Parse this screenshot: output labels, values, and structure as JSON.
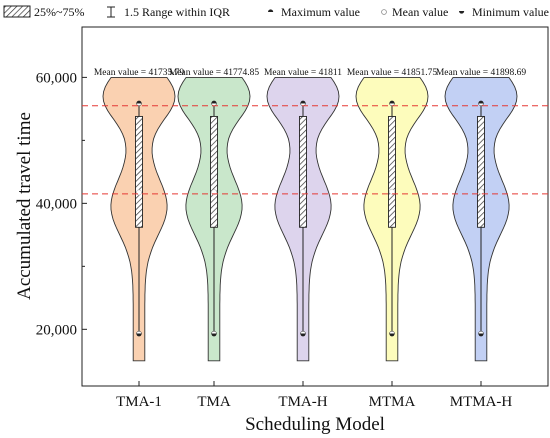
{
  "legend": {
    "items": [
      {
        "label": "25%~75%",
        "icon": "hatched-box-icon"
      },
      {
        "label": "1.5 Range within IQR",
        "icon": "whisker-icon"
      },
      {
        "label": "Maximum value",
        "icon": "max-marker-icon"
      },
      {
        "label": "Mean value",
        "icon": "mean-marker-icon"
      },
      {
        "label": "Minimum value",
        "icon": "min-marker-icon"
      }
    ]
  },
  "chart_data": {
    "type": "violin",
    "xlabel": "Scheduling Model",
    "ylabel": "Accumulated travel time",
    "categories": [
      "TMA-1",
      "TMA",
      "TMA-H",
      "MTMA",
      "MTMA-H"
    ],
    "ylim": [
      11000,
      68000
    ],
    "yticks": [
      20000,
      40000,
      60000
    ],
    "ytick_labels": [
      "20,000",
      "40,000",
      "60,000"
    ],
    "reference_lines": [
      55500,
      41500
    ],
    "reference_line_color": "#e53935",
    "violin_colors": [
      "#f9c9a3",
      "#bfe3c2",
      "#d7cdea",
      "#fdfbb0",
      "#b7c8f2"
    ],
    "series": [
      {
        "name": "TMA-1",
        "mean": 41735.79,
        "min": 19300,
        "max": 55900,
        "q1": 36200,
        "q3": 53800,
        "range": [
          15000,
          60000
        ],
        "mean_label": "Mean value = 41735.79"
      },
      {
        "name": "TMA",
        "mean": 41774.85,
        "min": 19300,
        "max": 55900,
        "q1": 36200,
        "q3": 53800,
        "range": [
          15000,
          60000
        ],
        "mean_label": "Mean value = 41774.85"
      },
      {
        "name": "TMA-H",
        "mean": 41811,
        "min": 19300,
        "max": 55900,
        "q1": 36200,
        "q3": 53800,
        "range": [
          15000,
          60000
        ],
        "mean_label": "Mean value = 41811"
      },
      {
        "name": "MTMA",
        "mean": 41851.75,
        "min": 19300,
        "max": 55900,
        "q1": 36200,
        "q3": 53800,
        "range": [
          15000,
          60000
        ],
        "mean_label": "Mean value = 41851.75"
      },
      {
        "name": "MTMA-H",
        "mean": 41898.69,
        "min": 19300,
        "max": 55900,
        "q1": 36200,
        "q3": 53800,
        "range": [
          15000,
          60000
        ],
        "mean_label": "Mean value = 41898.69"
      }
    ],
    "grid": false,
    "legend_position": "top"
  }
}
